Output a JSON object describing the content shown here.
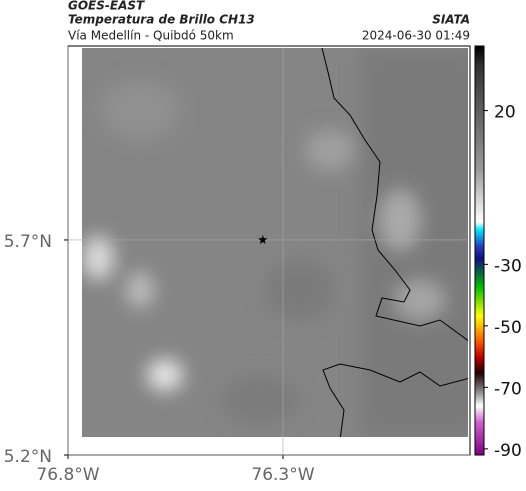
{
  "chart_data": {
    "type": "map",
    "title": "GOES-EAST",
    "subtitle": "Temperatura de Brillo CH13",
    "source": "SIATA",
    "route": "Vía Medellín - Quibdó 50km",
    "datetime": "2024-06-30 01:49",
    "xlim": [
      -76.8,
      -75.865
    ],
    "ylim": [
      5.2,
      6.151
    ],
    "xticks": [
      {
        "value": -76.8,
        "label": "76.8°W"
      },
      {
        "value": -76.3,
        "label": "76.3°W"
      }
    ],
    "yticks": [
      {
        "value": 5.2,
        "label": "5.2°N"
      },
      {
        "value": 5.7,
        "label": "5.7°N"
      }
    ],
    "grid": true,
    "points": {
      "x": [
        -76.347
      ],
      "y": [
        5.7
      ],
      "color": "#000000"
    },
    "clim": [
      -92,
      41
    ],
    "cticks": [
      20,
      -30,
      -50,
      -70,
      -90
    ]
  }
}
